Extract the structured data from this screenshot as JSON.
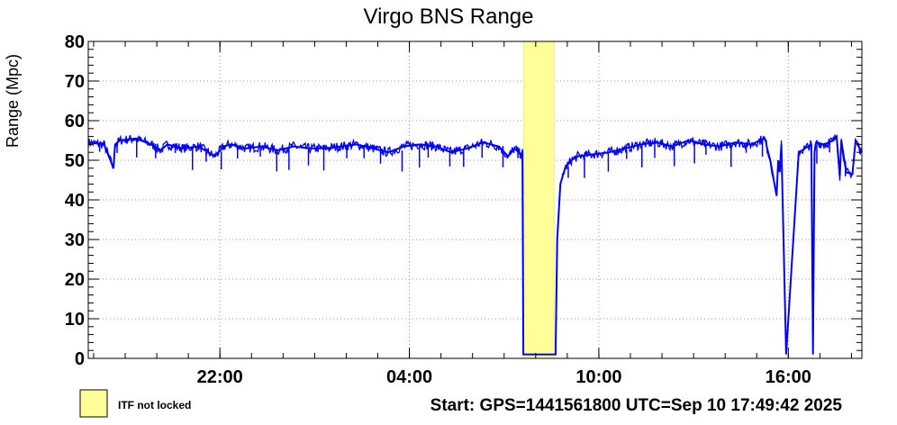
{
  "chart_data": {
    "type": "line",
    "title": "Virgo BNS Range",
    "ylabel": "Range (Mpc)",
    "xlabel": "",
    "ylim": [
      0,
      80
    ],
    "xlim_hours": [
      0,
      24.5
    ],
    "x_tick_labels": [
      "22:00",
      "04:00",
      "10:00",
      "16:00"
    ],
    "x_tick_hours": [
      4.17,
      10.17,
      16.17,
      22.17
    ],
    "y_tick_labels": [
      "0",
      "10",
      "20",
      "30",
      "40",
      "50",
      "60",
      "70",
      "80"
    ],
    "grid": true,
    "line_color": "#0000ff",
    "shade_color": "#ffff99",
    "legend": {
      "label": "ITF not locked",
      "placement": "bottom-left"
    },
    "not_locked_intervals": [
      [
        13.8,
        14.75
      ]
    ],
    "series": [
      {
        "x_hours": [
          0,
          0.5,
          0.8,
          0.85,
          1,
          1.5,
          2,
          2.3,
          2.5,
          3,
          3.5,
          4,
          4.3,
          4.5,
          5,
          5.5,
          6,
          6.5,
          7,
          7.5,
          8,
          8.5,
          9,
          9.5,
          10,
          10.5,
          11,
          11.5,
          12,
          12.5,
          13,
          13.3,
          13.5,
          13.7,
          13.75,
          13.78,
          13.79,
          14.8,
          14.85,
          14.95,
          15.1,
          15.3,
          15.5,
          16,
          16.5,
          17,
          17.5,
          18,
          18.5,
          19,
          19.5,
          20,
          20.5,
          21,
          21.4,
          21.45,
          21.5,
          21.6,
          21.8,
          21.85,
          21.9,
          21.95,
          22.1,
          22.5,
          22.9,
          22.95,
          23.0,
          23.05,
          23.3,
          23.6,
          23.7,
          23.8,
          23.85,
          24,
          24.2,
          24.3,
          24.5
        ],
        "y": [
          54.5,
          54,
          48,
          54,
          55,
          55.5,
          54,
          52.5,
          54,
          53,
          53.5,
          51,
          53.5,
          54,
          53,
          53.5,
          52.5,
          53.5,
          53,
          53,
          53.5,
          54,
          53,
          52,
          53.5,
          54,
          53.5,
          52,
          53,
          54.5,
          53.5,
          51,
          53,
          51.5,
          52,
          1,
          1,
          1,
          30,
          44,
          48,
          50,
          51,
          51.5,
          52,
          53,
          54,
          54.5,
          53.5,
          55,
          54,
          53.5,
          54.5,
          54,
          55.5,
          55,
          53,
          50,
          41,
          50,
          47,
          54,
          1,
          52,
          54,
          1,
          52,
          54.5,
          54,
          55,
          56,
          46,
          55,
          47,
          46.5,
          55,
          52
        ]
      }
    ]
  },
  "footer": {
    "start_text": "Start: GPS=1441561800 UTC=Sep 10 17:49:42 2025"
  }
}
